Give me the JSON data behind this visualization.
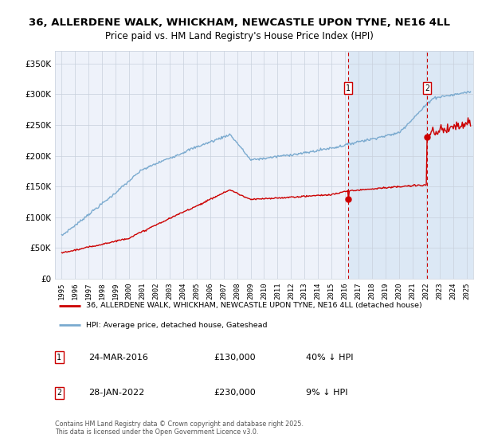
{
  "title_line1": "36, ALLERDENE WALK, WHICKHAM, NEWCASTLE UPON TYNE, NE16 4LL",
  "title_line2": "Price paid vs. HM Land Registry's House Price Index (HPI)",
  "background_color": "#ffffff",
  "plot_bg_color": "#eef2fa",
  "shaded_bg_color": "#dce8f5",
  "grid_color": "#c8d0dc",
  "red_line_color": "#cc0000",
  "blue_line_color": "#7aaacf",
  "marker1_date_x": 2016.23,
  "marker2_date_x": 2022.08,
  "marker1_price": 130000,
  "marker2_price": 230000,
  "marker1_date_str": "24-MAR-2016",
  "marker2_date_str": "28-JAN-2022",
  "marker1_hpi": "40% ↓ HPI",
  "marker2_hpi": "9% ↓ HPI",
  "legend_line1": "36, ALLERDENE WALK, WHICKHAM, NEWCASTLE UPON TYNE, NE16 4LL (detached house)",
  "legend_line2": "HPI: Average price, detached house, Gateshead",
  "footer": "Contains HM Land Registry data © Crown copyright and database right 2025.\nThis data is licensed under the Open Government Licence v3.0.",
  "ylim": [
    0,
    370000
  ],
  "xlim_start": 1994.5,
  "xlim_end": 2025.5,
  "yticks": [
    0,
    50000,
    100000,
    150000,
    200000,
    250000,
    300000,
    350000
  ],
  "ylabels": [
    "£0",
    "£50K",
    "£100K",
    "£150K",
    "£200K",
    "£250K",
    "£300K",
    "£350K"
  ],
  "xticks": [
    1995,
    1996,
    1997,
    1998,
    1999,
    2000,
    2001,
    2002,
    2003,
    2004,
    2005,
    2006,
    2007,
    2008,
    2009,
    2010,
    2011,
    2012,
    2013,
    2014,
    2015,
    2016,
    2017,
    2018,
    2019,
    2020,
    2021,
    2022,
    2023,
    2024,
    2025
  ]
}
